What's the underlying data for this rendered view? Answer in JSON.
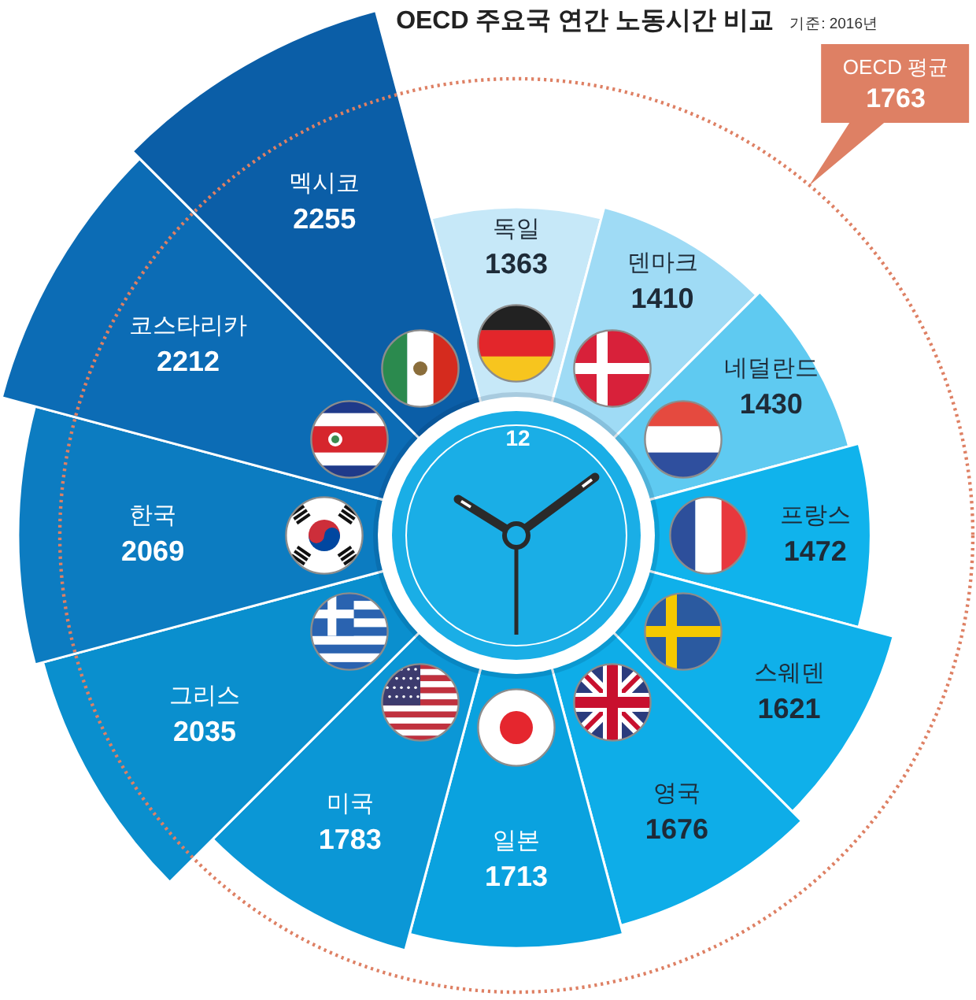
{
  "chart_data": {
    "type": "other",
    "title": "OECD 주요국 연간 노동시간 비교",
    "subtitle": "기준: 2016년",
    "categories": [
      "독일",
      "덴마크",
      "네덜란드",
      "프랑스",
      "스웨덴",
      "영국",
      "일본",
      "미국",
      "그리스",
      "한국",
      "코스타리카",
      "멕시코"
    ],
    "values": [
      1363,
      1410,
      1430,
      1472,
      1621,
      1676,
      1713,
      1783,
      2035,
      2069,
      2212,
      2255
    ],
    "colors": [
      "#c6e8f8",
      "#9fdbf5",
      "#5fcaf1",
      "#10b3ec",
      "#0fb0ea",
      "#0eade8",
      "#0aa2df",
      "#0b97d6",
      "#0a8fce",
      "#0c7cc1",
      "#0c6cb5",
      "#0b5ea7"
    ],
    "data_labels": true,
    "annotations": [
      "OECD 평균\n1763",
      "12"
    ]
  }
}
